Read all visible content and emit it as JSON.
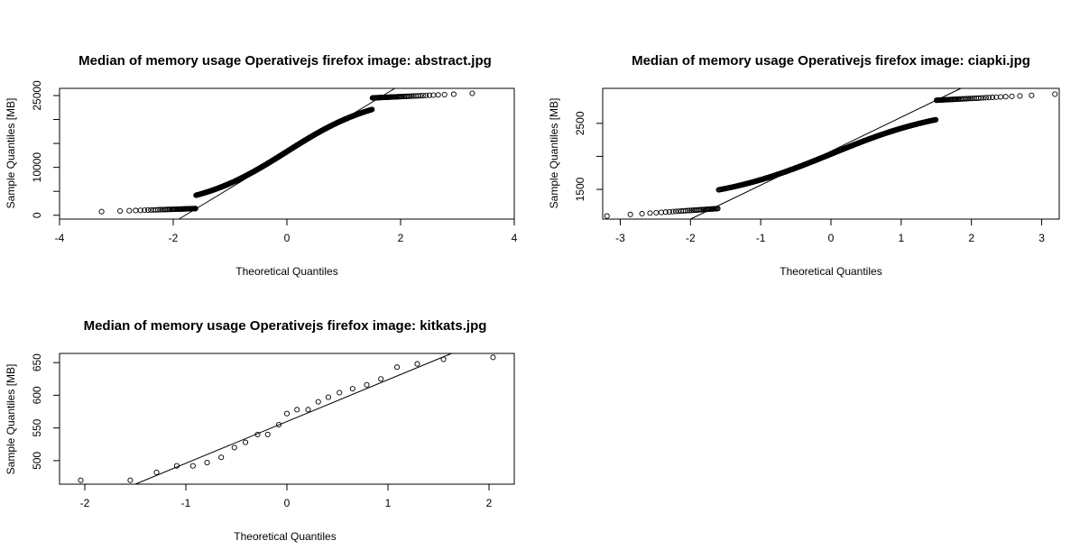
{
  "chart_data": [
    {
      "type": "scatter",
      "title": "Median of memory usage Operativejs firefox image:  abstract.jpg",
      "xlabel": "Theoretical Quantiles",
      "ylabel": "Sample Quantiles [MB]",
      "xlim": [
        -4,
        4
      ],
      "ylim": [
        -800,
        26500
      ],
      "xticks": [
        -4,
        -2,
        0,
        2,
        4
      ],
      "yticks": [
        0,
        10000,
        25000
      ],
      "yticks_minor": [
        5000,
        15000,
        20000
      ],
      "grid": false,
      "qqline": [
        [
          -1.9,
          -800
        ],
        [
          1.9,
          26500
        ]
      ],
      "sample": {
        "mode": "curve",
        "n": 900,
        "ymin": 600,
        "ymax": 25700,
        "center": 13300,
        "amp": 12050,
        "scale": 0.85,
        "lower_tail": 1400,
        "upper_tail": 24500
      }
    },
    {
      "type": "scatter",
      "title": "Median of memory usage Operativejs firefox image:  ciapki.jpg",
      "xlabel": "Theoretical Quantiles",
      "ylabel": "Sample Quantiles [MB]",
      "xlim": [
        -3.25,
        3.25
      ],
      "ylim": [
        1050,
        3030
      ],
      "xticks": [
        -3,
        -2,
        -1,
        0,
        1,
        2,
        3
      ],
      "yticks": [
        1500,
        2500
      ],
      "yticks_minor": [
        2000
      ],
      "grid": false,
      "qqline": [
        [
          -2.0,
          1050
        ],
        [
          1.85,
          3030
        ]
      ],
      "sample": {
        "mode": "curve",
        "n": 700,
        "ymin": 1060,
        "ymax": 2970,
        "center": 2035,
        "amp": 740,
        "scale": 0.9,
        "lower_tail": 1210,
        "upper_tail": 2850
      }
    },
    {
      "type": "scatter",
      "title": "Median of memory usage Operativejs firefox image:  kitkats.jpg",
      "xlabel": "Theoretical Quantiles",
      "ylabel": "Sample Quantiles [MB]",
      "xlim": [
        -2.25,
        2.25
      ],
      "ylim": [
        464,
        664
      ],
      "xticks": [
        -2,
        -1,
        0,
        1,
        2
      ],
      "yticks": [
        500,
        550,
        600,
        650
      ],
      "grid": false,
      "qqline": [
        [
          -1.5,
          464
        ],
        [
          1.63,
          664
        ]
      ],
      "sample": {
        "mode": "points",
        "x": [
          -2.04,
          -1.55,
          -1.29,
          -1.09,
          -0.93,
          -0.79,
          -0.65,
          -0.52,
          -0.41,
          -0.29,
          -0.19,
          -0.08,
          0.0,
          0.1,
          0.21,
          0.31,
          0.41,
          0.52,
          0.65,
          0.79,
          0.93,
          1.09,
          1.29,
          1.55,
          2.04
        ],
        "y": [
          470,
          470,
          482,
          492,
          492,
          497,
          505,
          520,
          528,
          540,
          540,
          555,
          572,
          578,
          578,
          590,
          597,
          604,
          610,
          616,
          625,
          643,
          648,
          655,
          658
        ]
      }
    }
  ]
}
